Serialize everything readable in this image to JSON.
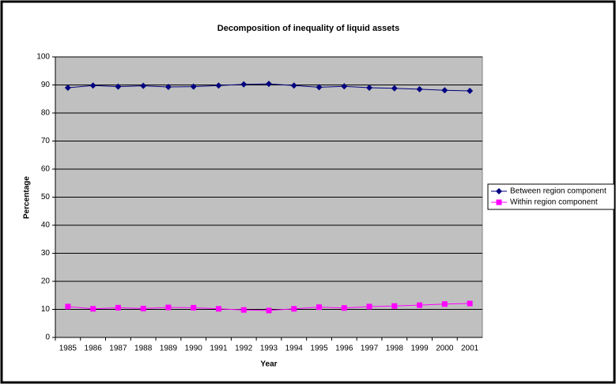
{
  "chart_data": {
    "type": "line",
    "title": "Decomposition of inequality of liquid assets",
    "x_label": "Year",
    "y_label": "Percentage",
    "categories": [
      "1985",
      "1986",
      "1987",
      "1988",
      "1989",
      "1990",
      "1991",
      "1992",
      "1993",
      "1994",
      "1995",
      "1996",
      "1997",
      "1998",
      "1999",
      "2000",
      "2001"
    ],
    "series": [
      {
        "name": "Between region component",
        "color": "#000080",
        "marker": "diamond",
        "values": [
          89.0,
          89.8,
          89.4,
          89.7,
          89.3,
          89.4,
          89.8,
          90.2,
          90.4,
          89.8,
          89.2,
          89.5,
          89.0,
          88.8,
          88.5,
          88.1,
          87.9
        ]
      },
      {
        "name": "Within region component",
        "color": "#ff00ff",
        "marker": "square",
        "values": [
          11.0,
          10.2,
          10.6,
          10.3,
          10.7,
          10.6,
          10.2,
          9.8,
          9.6,
          10.2,
          10.8,
          10.5,
          11.0,
          11.2,
          11.5,
          11.9,
          12.1
        ]
      }
    ],
    "ylim": [
      0,
      100
    ],
    "yticks": [
      0,
      10,
      20,
      30,
      40,
      50,
      60,
      70,
      80,
      90,
      100
    ],
    "grid": true,
    "legend": "right",
    "plot_background": "#c0c0c0"
  }
}
